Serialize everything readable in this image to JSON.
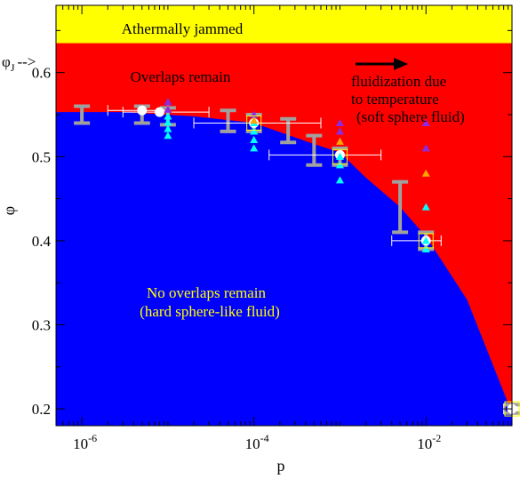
{
  "chart_data": {
    "type": "scatter",
    "xscale": "log",
    "xlim": [
      5e-07,
      0.1
    ],
    "ylim": [
      0.18,
      0.68
    ],
    "xlabel": "p",
    "ylabel": "φ",
    "phiJ_label": "φ",
    "phiJ_sub": "J",
    "phiJ_arrow": "-->",
    "phiJ_value": 0.635,
    "x_ticks": [
      {
        "value": 1e-06,
        "base": "10",
        "exp": "-6"
      },
      {
        "value": 0.0001,
        "base": "10",
        "exp": "-4"
      },
      {
        "value": 0.01,
        "base": "10",
        "exp": "-2"
      }
    ],
    "y_ticks": [
      {
        "value": 0.2,
        "label": "0.2"
      },
      {
        "value": 0.3,
        "label": "0.3"
      },
      {
        "value": 0.4,
        "label": "0.4"
      },
      {
        "value": 0.5,
        "label": "0.5"
      },
      {
        "value": 0.6,
        "label": "0.6"
      }
    ],
    "regions": {
      "jammed": {
        "label": "Athermally jammed",
        "color": "#ffff00"
      },
      "overlaps": {
        "label": "Overlaps remain",
        "color": "#ff0000"
      },
      "no_overlaps": {
        "line1": "No overlaps remain",
        "line2": "(hard sphere-like fluid)",
        "color": "#0000ff"
      }
    },
    "boundary": [
      [
        5e-07,
        0.553
      ],
      [
        3e-06,
        0.553
      ],
      [
        2e-05,
        0.548
      ],
      [
        0.0001,
        0.54
      ],
      [
        0.0005,
        0.515
      ],
      [
        0.001,
        0.505
      ],
      [
        0.002,
        0.475
      ],
      [
        0.005,
        0.44
      ],
      [
        0.01,
        0.405
      ],
      [
        0.03,
        0.33
      ],
      [
        0.1,
        0.195
      ]
    ],
    "annotation": {
      "line1": "fluidization due",
      "line2": "to temperature",
      "line3": "(soft sphere fluid)"
    },
    "colors": {
      "gray": "#a0a0a0",
      "white": "#ffffff",
      "cyan": "#00ffff",
      "purple": "#8a2be2",
      "orange": "#ffa500",
      "yellow_box": "#ffff00"
    },
    "series": [
      {
        "marker": "gray-ibeam",
        "points": [
          {
            "x": 1e-06,
            "y": 0.55,
            "ylo": 0.54,
            "yhi": 0.56
          },
          {
            "x": 5e-06,
            "y": 0.55,
            "ylo": 0.54,
            "yhi": 0.56
          },
          {
            "x": 1e-05,
            "y": 0.548,
            "ylo": 0.538,
            "yhi": 0.558
          },
          {
            "x": 5e-05,
            "y": 0.543,
            "ylo": 0.53,
            "yhi": 0.555
          },
          {
            "x": 0.0001,
            "y": 0.54,
            "ylo": 0.53,
            "yhi": 0.55
          },
          {
            "x": 0.00025,
            "y": 0.532,
            "ylo": 0.517,
            "yhi": 0.545
          },
          {
            "x": 0.0005,
            "y": 0.508,
            "ylo": 0.49,
            "yhi": 0.525
          },
          {
            "x": 0.001,
            "y": 0.5,
            "ylo": 0.49,
            "yhi": 0.51
          },
          {
            "x": 0.005,
            "y": 0.44,
            "ylo": 0.41,
            "yhi": 0.47
          },
          {
            "x": 0.01,
            "y": 0.4,
            "ylo": 0.39,
            "yhi": 0.41
          },
          {
            "x": 0.1,
            "y": 0.2,
            "ylo": 0.195,
            "yhi": 0.205
          }
        ]
      },
      {
        "marker": "white-circle",
        "points": [
          {
            "x": 5e-06,
            "y": 0.555,
            "xlo": 2e-06,
            "xhi": 1e-05
          },
          {
            "x": 8e-06,
            "y": 0.553,
            "xlo": 3e-06,
            "xhi": 3e-05
          },
          {
            "x": 0.0001,
            "y": 0.54,
            "xlo": 2e-05,
            "xhi": 0.0006
          },
          {
            "x": 0.001,
            "y": 0.502,
            "xlo": 0.00015,
            "xhi": 0.003
          },
          {
            "x": 0.01,
            "y": 0.4,
            "xlo": 0.004,
            "xhi": 0.015
          },
          {
            "x": 0.1,
            "y": 0.2,
            "xlo": 0.08,
            "xhi": 0.1
          }
        ]
      },
      {
        "marker": "cyan-triangle",
        "points": [
          {
            "x": 1e-05,
            "y": 0.525
          },
          {
            "x": 1e-05,
            "y": 0.533
          },
          {
            "x": 1e-05,
            "y": 0.541
          },
          {
            "x": 1e-05,
            "y": 0.548
          },
          {
            "x": 0.0001,
            "y": 0.51
          },
          {
            "x": 0.0001,
            "y": 0.52
          },
          {
            "x": 0.0001,
            "y": 0.53
          },
          {
            "x": 0.0001,
            "y": 0.54
          },
          {
            "x": 0.001,
            "y": 0.472
          },
          {
            "x": 0.001,
            "y": 0.49
          },
          {
            "x": 0.001,
            "y": 0.5
          },
          {
            "x": 0.01,
            "y": 0.44
          },
          {
            "x": 0.01,
            "y": 0.39
          },
          {
            "x": 0.01,
            "y": 0.4
          }
        ]
      },
      {
        "marker": "purple-triangle",
        "points": [
          {
            "x": 1e-05,
            "y": 0.565
          },
          {
            "x": 1e-05,
            "y": 0.556
          },
          {
            "x": 0.0001,
            "y": 0.55
          },
          {
            "x": 0.001,
            "y": 0.54
          },
          {
            "x": 0.001,
            "y": 0.53
          },
          {
            "x": 0.01,
            "y": 0.54
          },
          {
            "x": 0.01,
            "y": 0.51
          }
        ]
      },
      {
        "marker": "orange-triangle",
        "points": [
          {
            "x": 0.0001,
            "y": 0.543
          },
          {
            "x": 0.001,
            "y": 0.518
          },
          {
            "x": 0.01,
            "y": 0.48
          }
        ]
      },
      {
        "marker": "yellow-square",
        "points": [
          {
            "x": 0.0001,
            "y": 0.54
          },
          {
            "x": 0.001,
            "y": 0.5
          },
          {
            "x": 0.01,
            "y": 0.4
          },
          {
            "x": 0.1,
            "y": 0.2
          }
        ]
      }
    ]
  }
}
